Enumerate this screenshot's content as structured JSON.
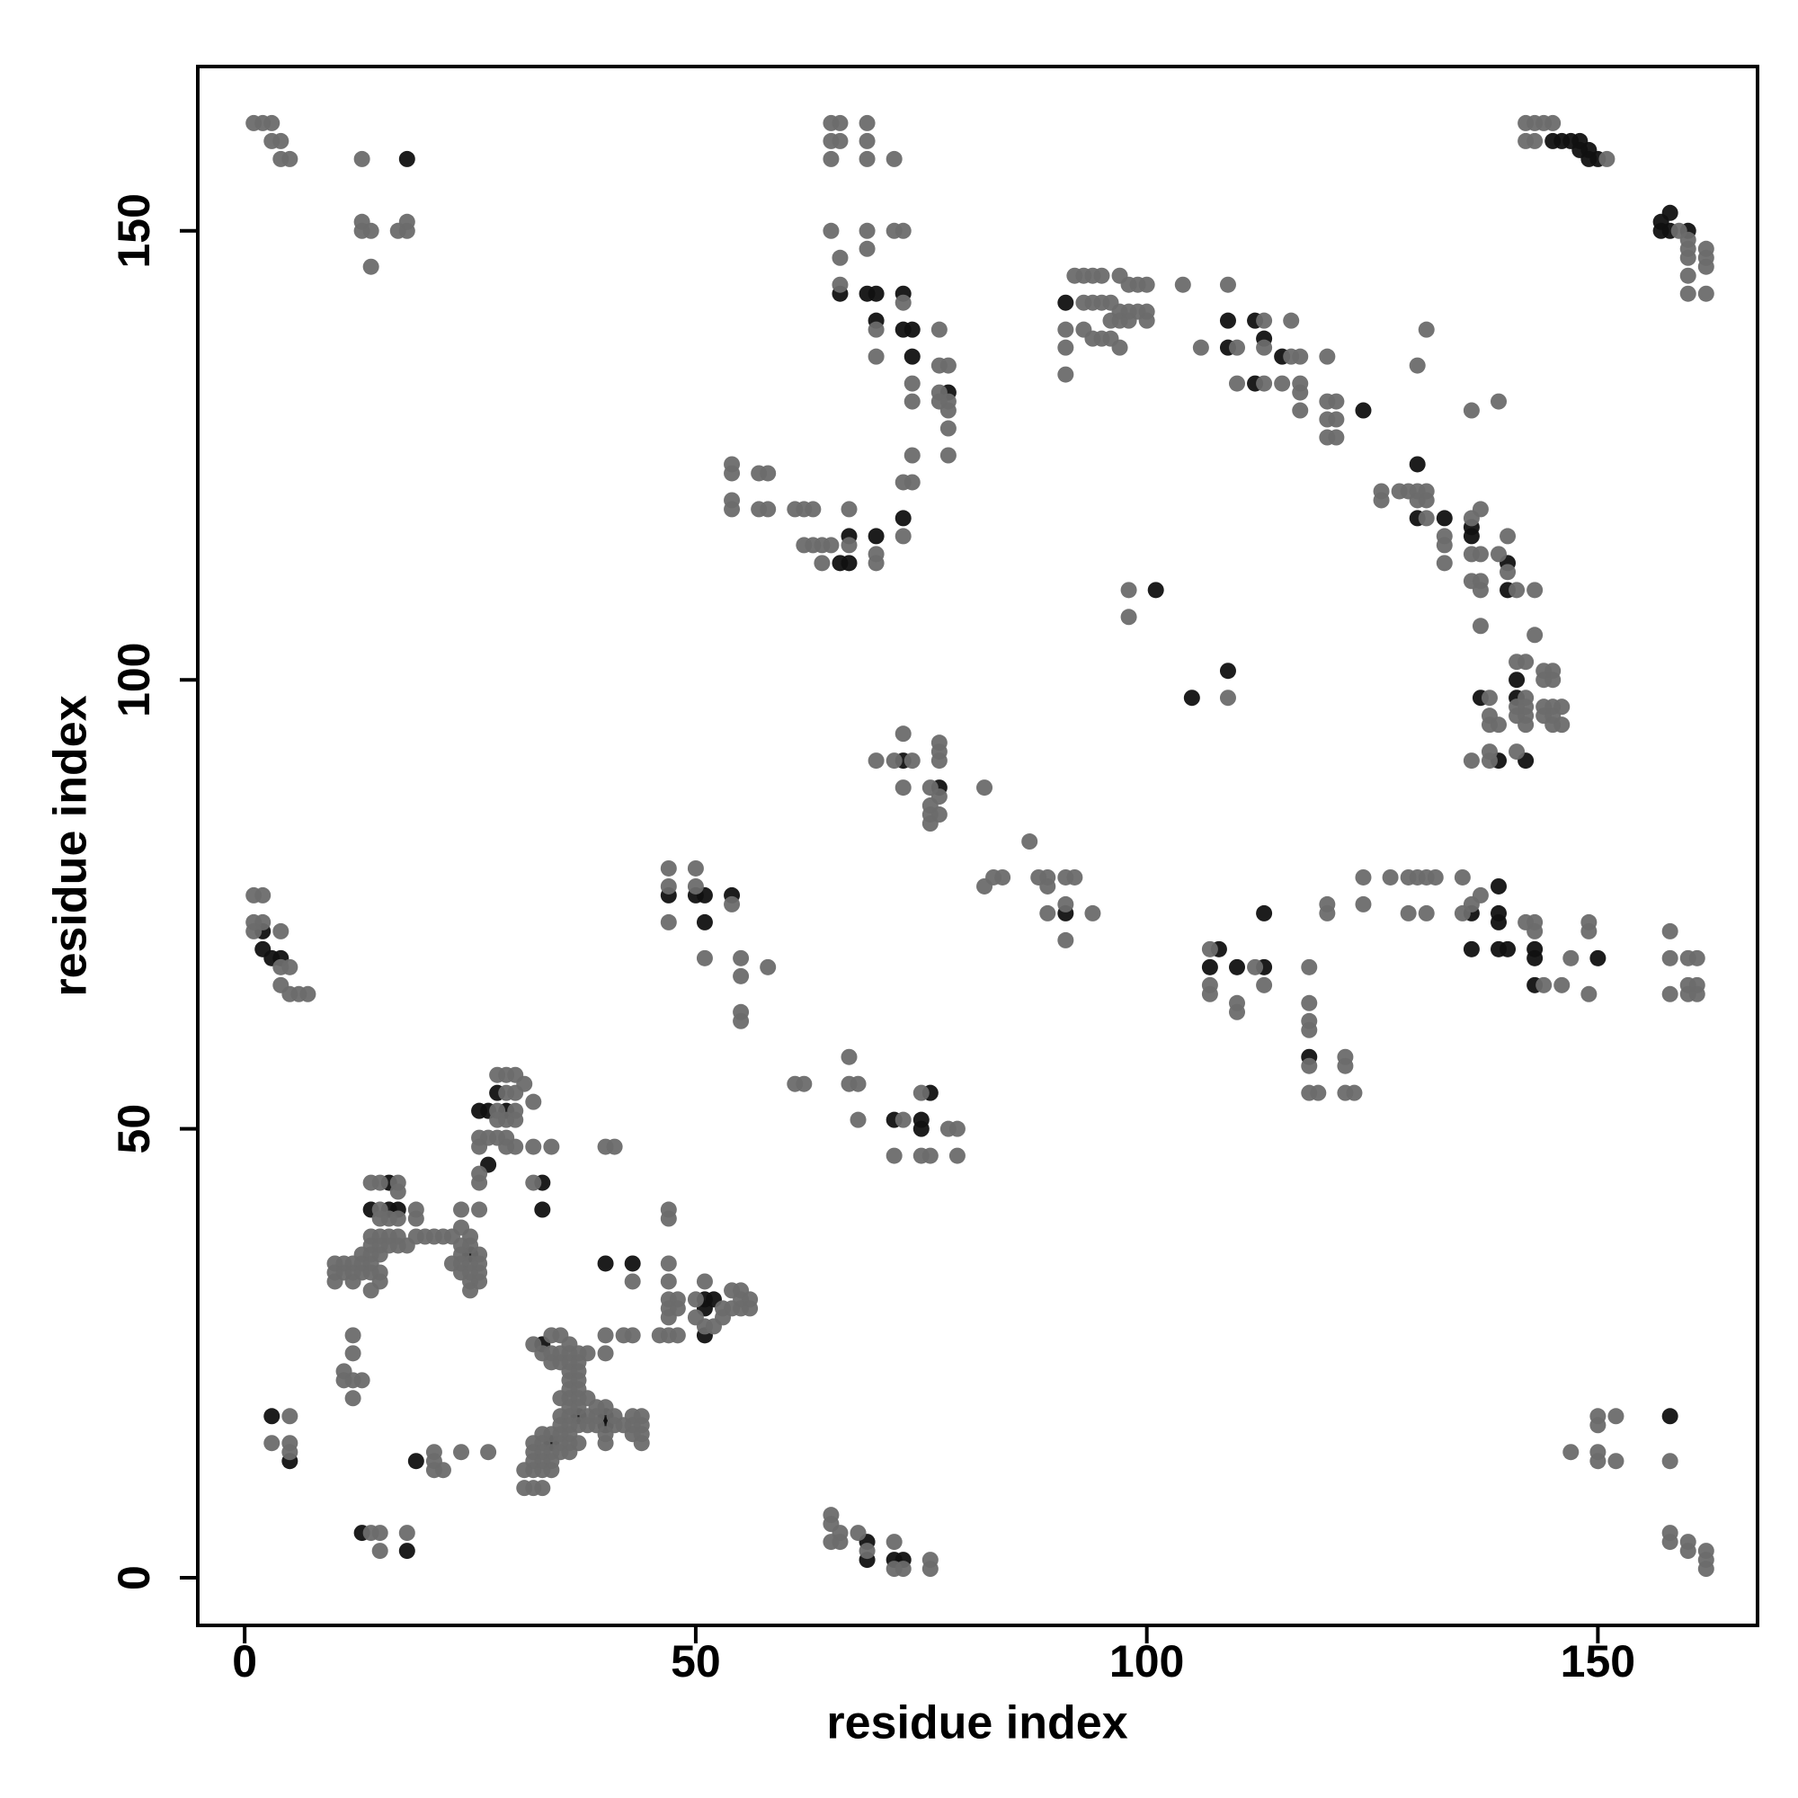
{
  "chart_data": {
    "type": "scatter",
    "xlabel": "residue index",
    "ylabel": "residue index",
    "xlim": [
      -5.2,
      167.7
    ],
    "ylim": [
      -5.3,
      168.3
    ],
    "xticks": [
      0,
      50,
      100,
      150
    ],
    "yticks": [
      0,
      50,
      100,
      150
    ],
    "series": [
      {
        "color": "#111111",
        "x": [
          18,
          66,
          69,
          70,
          73,
          70,
          73,
          74,
          74,
          78,
          66,
          67,
          67,
          70,
          73,
          91,
          109,
          109,
          112,
          113,
          112,
          115,
          124,
          130,
          130,
          133,
          136,
          136,
          140,
          140,
          141,
          137,
          141,
          139,
          142,
          145,
          146,
          147,
          148,
          148,
          149,
          150,
          149,
          157,
          158,
          157,
          158,
          160,
          101,
          105,
          109,
          73,
          77,
          91,
          47,
          50,
          51,
          54,
          51,
          2,
          2,
          3,
          4,
          108,
          107,
          110,
          113,
          118,
          113,
          136,
          139,
          139,
          139,
          136,
          139,
          140,
          143,
          143,
          143,
          150,
          72,
          76,
          75,
          75,
          28,
          26,
          27,
          29,
          27,
          33,
          33,
          16,
          14,
          16,
          17,
          25,
          40,
          43,
          51,
          52,
          51,
          51,
          33,
          37,
          40,
          40,
          34,
          3,
          5,
          19,
          13,
          18,
          69,
          69,
          72,
          73,
          158
        ],
        "values": [
          158,
          143,
          143,
          143,
          143,
          140,
          139,
          139,
          136,
          132,
          113,
          113,
          116,
          116,
          118,
          142,
          140,
          137,
          140,
          138,
          133,
          136,
          130,
          124,
          118,
          118,
          117,
          116,
          113,
          110,
          100,
          98,
          98,
          91,
          91,
          160,
          160,
          160,
          160,
          159,
          159,
          158,
          158,
          151,
          152,
          150,
          150,
          150,
          110,
          98,
          101,
          91,
          88,
          74,
          76,
          76,
          76,
          76,
          73,
          72,
          70,
          69,
          69,
          70,
          68,
          68,
          68,
          58,
          74,
          74,
          77,
          74,
          73,
          70,
          70,
          70,
          70,
          69,
          66,
          69,
          51,
          54,
          51,
          50,
          54,
          52,
          52,
          52,
          46,
          44,
          41,
          44,
          41,
          41,
          41,
          36,
          35,
          35,
          31,
          31,
          30,
          27,
          26,
          18,
          18,
          17,
          15,
          18,
          13,
          13,
          5,
          3,
          4,
          2,
          2,
          2,
          18
        ]
      },
      {
        "color": "#6b6b6b",
        "x": [
          1,
          2,
          3,
          3,
          4,
          4,
          5,
          13,
          13,
          13,
          14,
          14,
          17,
          18,
          18,
          65,
          66,
          69,
          65,
          66,
          69,
          65,
          69,
          72,
          65,
          66,
          69,
          69,
          72,
          73,
          66,
          73,
          70,
          77,
          70,
          77,
          78,
          74,
          77,
          74,
          77,
          78,
          78,
          78,
          78,
          74,
          73,
          74,
          54,
          54,
          57,
          58,
          54,
          54,
          57,
          58,
          61,
          62,
          63,
          62,
          63,
          64,
          65,
          64,
          67,
          70,
          70,
          67,
          73,
          92,
          93,
          94,
          95,
          97,
          98,
          99,
          100,
          93,
          94,
          95,
          96,
          97,
          98,
          99,
          100,
          96,
          97,
          98,
          100,
          91,
          93,
          94,
          95,
          96,
          97,
          91,
          91,
          104,
          106,
          109,
          110,
          113,
          113,
          110,
          113,
          116,
          117,
          116,
          115,
          117,
          117,
          117,
          120,
          120,
          121,
          120,
          121,
          120,
          121,
          131,
          130,
          136,
          139,
          126,
          126,
          128,
          129,
          130,
          130,
          131,
          131,
          131,
          133,
          136,
          137,
          133,
          133,
          136,
          137,
          140,
          139,
          140,
          136,
          137,
          137,
          141,
          143,
          137,
          143,
          141,
          142,
          144,
          145,
          144,
          145,
          138,
          142,
          141,
          142,
          144,
          145,
          146,
          138,
          141,
          142,
          144,
          145,
          138,
          139,
          142,
          145,
          146,
          136,
          138,
          138,
          141,
          142,
          143,
          144,
          145,
          142,
          143,
          151,
          159,
          160,
          160,
          160,
          162,
          162,
          162,
          160,
          160,
          162,
          98,
          98,
          109,
          73,
          77,
          77,
          72,
          74,
          70,
          77,
          76,
          73,
          82,
          77,
          76,
          76,
          77,
          76,
          87,
          83,
          82,
          84,
          88,
          89,
          89,
          91,
          92,
          89,
          91,
          94,
          91,
          47,
          50,
          47,
          50,
          54,
          47,
          51,
          55,
          58,
          55,
          55,
          55,
          1,
          2,
          1,
          2,
          1,
          4,
          4,
          5,
          4,
          5,
          6,
          7,
          107,
          112,
          107,
          107,
          110,
          110,
          113,
          118,
          118,
          118,
          118,
          118,
          122,
          122,
          118,
          119,
          122,
          123,
          120,
          120,
          124,
          124,
          127,
          129,
          130,
          131,
          132,
          129,
          131,
          135,
          135,
          136,
          137,
          142,
          143,
          143,
          144,
          146,
          147,
          149,
          149,
          149,
          158,
          158,
          160,
          161,
          158,
          160,
          161,
          160,
          161,
          61,
          62,
          67,
          67,
          68,
          68,
          73,
          75,
          78,
          79,
          72,
          75,
          76,
          79,
          28,
          29,
          30,
          31,
          29,
          30,
          32,
          28,
          30,
          28,
          29,
          30,
          26,
          27,
          28,
          29,
          26,
          29,
          30,
          32,
          34,
          26,
          26,
          32,
          40,
          41,
          14,
          15,
          17,
          17,
          15,
          19,
          19,
          15,
          16,
          17,
          24,
          26,
          14,
          15,
          16,
          17,
          19,
          20,
          21,
          22,
          23,
          24,
          25,
          14,
          15,
          16,
          17,
          18,
          24,
          25,
          13,
          14,
          15,
          24,
          26,
          10,
          11,
          12,
          13,
          14,
          23,
          24,
          25,
          26,
          10,
          11,
          12,
          13,
          14,
          15,
          24,
          25,
          26,
          10,
          12,
          15,
          25,
          26,
          14,
          25,
          43,
          47,
          47,
          47,
          47,
          51,
          47,
          48,
          50,
          53,
          54,
          55,
          55,
          55,
          56,
          56,
          54,
          47,
          48,
          47,
          51,
          52,
          50,
          53,
          46,
          47,
          48,
          42,
          43,
          40,
          40,
          38,
          32,
          34,
          35,
          36,
          33,
          34,
          35,
          36,
          37,
          34,
          35,
          36,
          37,
          36,
          37,
          36,
          37,
          36,
          37,
          35,
          36,
          37,
          38,
          39,
          40,
          36,
          37,
          35,
          36,
          38,
          39,
          41,
          43,
          44,
          35,
          36,
          37,
          38,
          39,
          41,
          42,
          43,
          44,
          33,
          34,
          35,
          36,
          40,
          43,
          44,
          32,
          33,
          35,
          36,
          37,
          40,
          44,
          32,
          33,
          34,
          35,
          36,
          32,
          33,
          34,
          31,
          32,
          33,
          34,
          31,
          32,
          33,
          12,
          12,
          11,
          11,
          12,
          13,
          12,
          5,
          3,
          5,
          5,
          21,
          21,
          21,
          22,
          24,
          27,
          14,
          15,
          18,
          15,
          65,
          65,
          66,
          68,
          65,
          66,
          69,
          72,
          72,
          73,
          76,
          76,
          147,
          150,
          152,
          150,
          150,
          152,
          150,
          158,
          158,
          158,
          160,
          160,
          162,
          162,
          162
        ],
        "values": [
          162,
          162,
          162,
          160,
          160,
          158,
          158,
          158,
          151,
          150,
          150,
          146,
          150,
          150,
          151,
          162,
          162,
          162,
          160,
          160,
          160,
          158,
          158,
          158,
          150,
          147,
          150,
          148,
          150,
          150,
          144,
          142,
          139,
          139,
          136,
          135,
          135,
          133,
          132,
          131,
          131,
          131,
          130,
          128,
          125,
          125,
          122,
          122,
          124,
          123,
          123,
          123,
          120,
          119,
          119,
          119,
          119,
          119,
          119,
          115,
          115,
          115,
          115,
          113,
          115,
          114,
          113,
          119,
          116,
          145,
          145,
          145,
          145,
          145,
          144,
          144,
          144,
          142,
          142,
          142,
          142,
          141,
          141,
          141,
          141,
          140,
          140,
          140,
          140,
          139,
          139,
          138,
          138,
          138,
          137,
          137,
          134,
          144,
          137,
          144,
          137,
          140,
          137,
          133,
          133,
          136,
          136,
          140,
          133,
          133,
          132,
          130,
          136,
          131,
          131,
          129,
          129,
          127,
          127,
          139,
          135,
          130,
          131,
          121,
          120,
          121,
          121,
          121,
          120,
          121,
          120,
          118,
          116,
          118,
          119,
          115,
          113,
          114,
          114,
          116,
          114,
          112,
          111,
          111,
          110,
          110,
          110,
          106,
          105,
          102,
          102,
          101,
          101,
          100,
          100,
          98,
          98,
          97,
          97,
          97,
          97,
          97,
          96,
          96,
          96,
          96,
          96,
          95,
          95,
          95,
          95,
          95,
          91,
          91,
          92,
          92,
          162,
          162,
          162,
          162,
          160,
          160,
          158,
          150,
          149,
          148,
          147,
          148,
          146,
          147,
          145,
          143,
          143,
          110,
          107,
          98,
          94,
          93,
          92,
          91,
          91,
          91,
          91,
          88,
          88,
          88,
          87,
          86,
          85,
          85,
          84,
          82,
          78,
          77,
          78,
          78,
          78,
          77,
          78,
          78,
          74,
          71,
          74,
          75,
          79,
          79,
          77,
          77,
          75,
          73,
          69,
          69,
          68,
          67,
          63,
          62,
          76,
          76,
          73,
          73,
          72,
          72,
          68,
          68,
          66,
          65,
          65,
          65,
          70,
          68,
          66,
          65,
          64,
          63,
          66,
          68,
          64,
          62,
          61,
          57,
          58,
          57,
          54,
          54,
          54,
          54,
          75,
          74,
          78,
          75,
          78,
          78,
          78,
          78,
          78,
          74,
          74,
          78,
          74,
          75,
          76,
          73,
          73,
          72,
          66,
          66,
          69,
          73,
          72,
          65,
          72,
          69,
          69,
          69,
          65,
          66,
          66,
          65,
          65,
          55,
          55,
          58,
          55,
          55,
          51,
          51,
          54,
          50,
          50,
          47,
          47,
          47,
          47,
          56,
          56,
          56,
          55,
          54,
          54,
          53,
          52,
          52,
          51,
          51,
          51,
          49,
          49,
          49,
          49,
          48,
          48,
          48,
          48,
          48,
          45,
          44,
          44,
          48,
          48,
          44,
          44,
          44,
          43,
          41,
          41,
          40,
          40,
          40,
          40,
          41,
          41,
          38,
          38,
          38,
          38,
          38,
          38,
          38,
          38,
          38,
          39,
          38,
          37,
          37,
          37,
          37,
          37,
          37,
          37,
          36,
          36,
          36,
          36,
          36,
          35,
          35,
          35,
          35,
          35,
          35,
          35,
          35,
          35,
          34,
          34,
          34,
          34,
          34,
          34,
          34,
          34,
          34,
          33,
          33,
          33,
          33,
          33,
          32,
          32,
          33,
          41,
          40,
          35,
          33,
          33,
          31,
          31,
          31,
          30,
          32,
          32,
          31,
          30,
          31,
          30,
          30,
          30,
          30,
          29,
          28,
          28,
          29,
          29,
          27,
          27,
          27,
          27,
          27,
          27,
          25,
          25,
          26,
          27,
          27,
          26,
          25,
          25,
          25,
          25,
          25,
          24,
          24,
          24,
          24,
          23,
          23,
          22,
          22,
          21,
          21,
          20,
          20,
          20,
          20,
          19,
          19,
          19,
          19,
          18,
          18,
          18,
          18,
          18,
          18,
          18,
          17,
          17,
          17,
          17,
          17,
          17,
          17,
          17,
          17,
          16,
          16,
          16,
          16,
          16,
          16,
          16,
          15,
          15,
          15,
          15,
          15,
          15,
          15,
          14,
          14,
          14,
          14,
          14,
          13,
          13,
          13,
          12,
          12,
          12,
          12,
          10,
          10,
          10,
          27,
          25,
          23,
          22,
          22,
          22,
          20,
          18,
          15,
          15,
          14,
          14,
          13,
          12,
          12,
          14,
          14,
          5,
          5,
          5,
          3,
          7,
          6,
          5,
          5,
          4,
          4,
          3,
          4,
          1,
          1,
          2,
          1,
          14,
          18,
          18,
          17,
          14,
          13,
          13,
          13,
          5,
          4,
          4,
          3,
          3,
          2,
          1
        ]
      }
    ]
  }
}
